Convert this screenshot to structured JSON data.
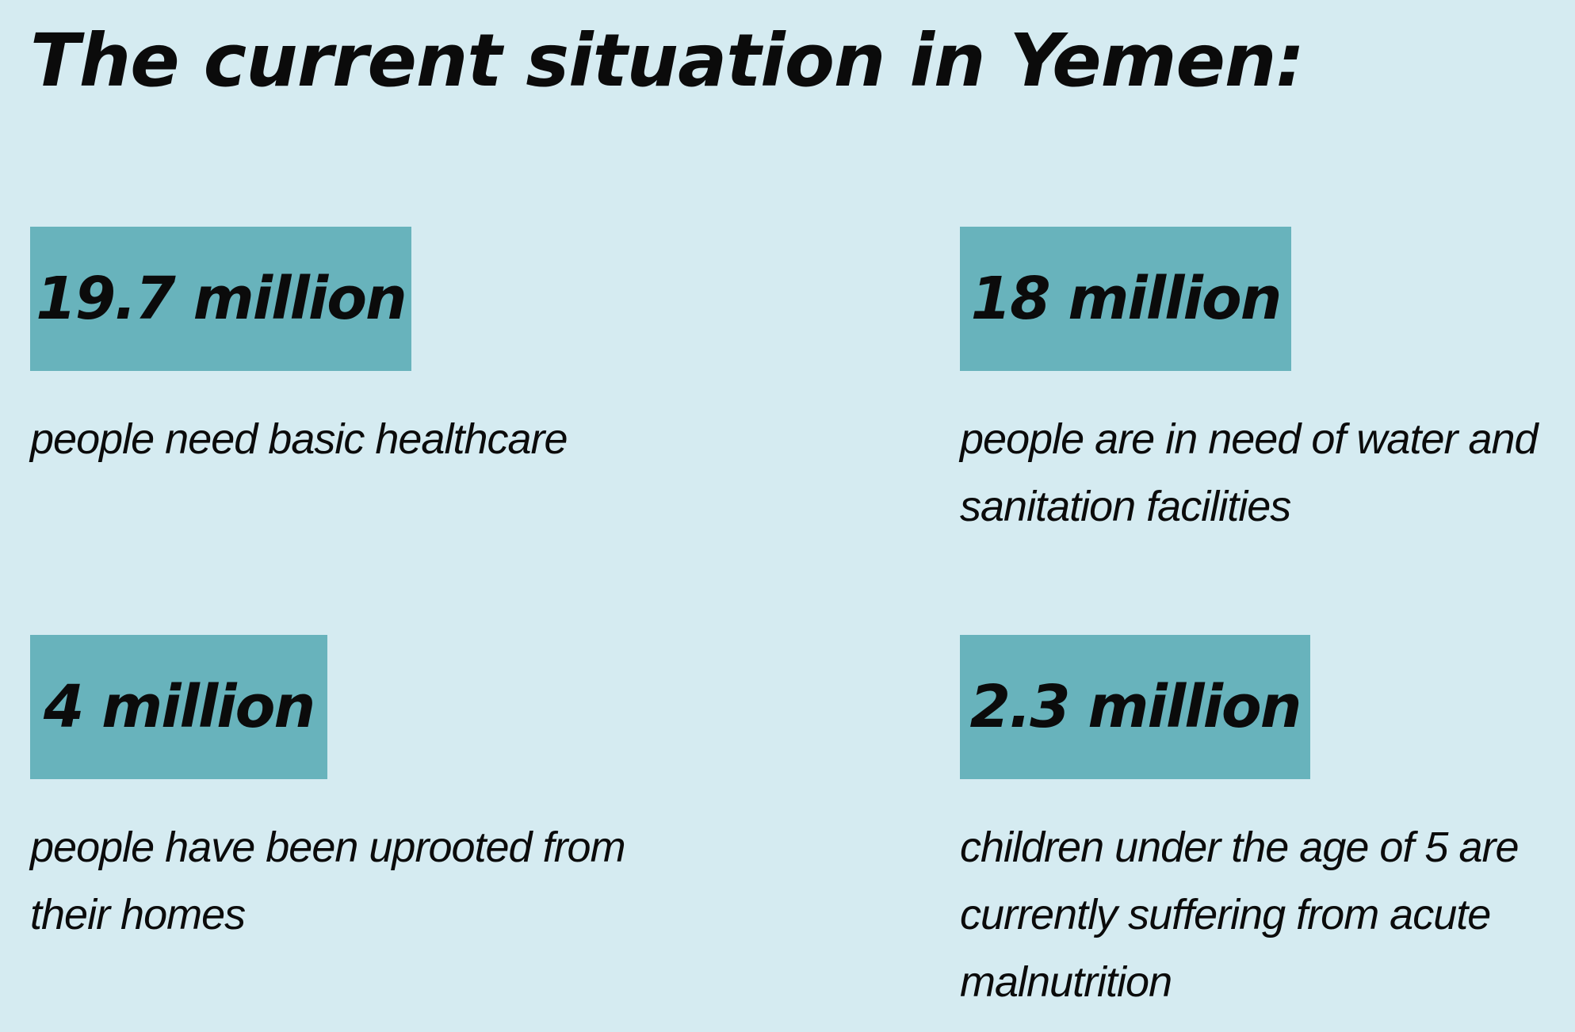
{
  "title": "The current situation in Yemen:",
  "stats": [
    {
      "value": "19.7 million",
      "description": "people need basic healthcare"
    },
    {
      "value": "18 million",
      "description": "people are in need of water and sanitation facilities"
    },
    {
      "value": "4 million",
      "description": "people have been uprooted from their homes"
    },
    {
      "value": "2.3 million",
      "description": "children under the age of 5 are currently suffering from acute malnutrition"
    }
  ],
  "colors": {
    "background": "#d5ebf1",
    "badge": "#68b3bc",
    "text": "#0b0b0b"
  }
}
